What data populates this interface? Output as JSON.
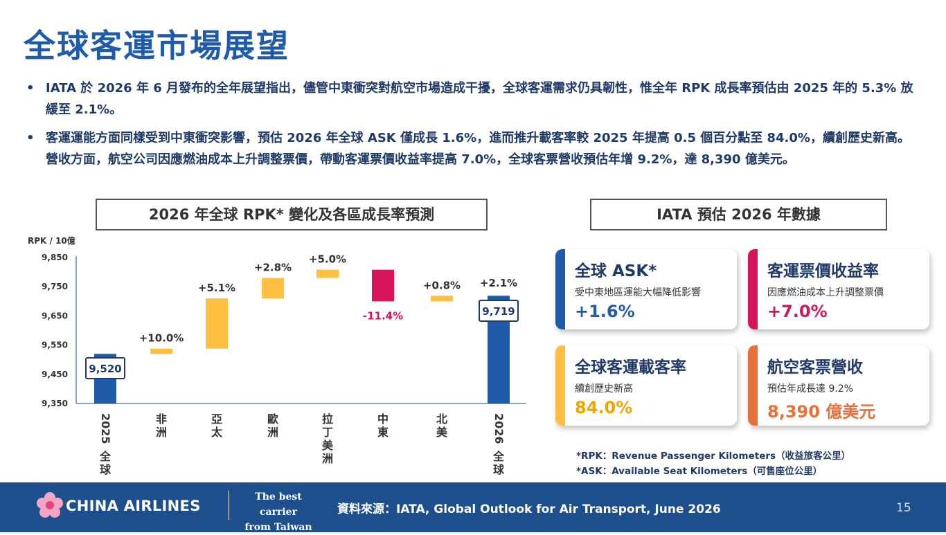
{
  "title": "全球客運市場展望",
  "bullets": [
    "IATA 於 2026 年 6 月發布的全年展望指出，儘管中東衝突對航空市場造成干擾，全球客運需求仍具韌性，惟全年 RPK 成長率預估由 2025 年的 5.3% 放緩至 2.1%。",
    "客運運能方面同樣受到中東衝突影響，預估 2026 年全球 ASK 僅成長 1.6%，進而推升載客率較 2025 年提高 0.5 個百分點至 84.0%，續創歷史新高。營收方面，航空公司因應燃油成本上升調整票價，帶動客運票價收益率提高 7.0%，全球客票營收預估年增 9.2%，達 8,390 億美元。"
  ],
  "bullet_symbol": "•",
  "chart_box_title": "2026 年全球 RPK* 變化及各區成長率預測",
  "data_box_title": "IATA 預估 2026 年數據",
  "chart_data": {
    "type": "bar",
    "subtype": "waterfall",
    "ylabel": "RPK / 10億",
    "ylim": [
      9350,
      9850
    ],
    "yticks": [
      9350,
      9450,
      9550,
      9650,
      9750,
      9850
    ],
    "ytick_labels": [
      "9,350",
      "9,450",
      "9,550",
      "9,650",
      "9,750",
      "9,850"
    ],
    "categories": [
      "2025 全球",
      "非洲",
      "亞太",
      "歐洲",
      "拉丁美洲",
      "中東",
      "北美",
      "2026 全球"
    ],
    "bars": [
      {
        "label": "2025 全球",
        "kind": "total",
        "start": 9350,
        "end": 9520,
        "value_label": "9,520",
        "pct_label": ""
      },
      {
        "label": "非洲",
        "kind": "increase",
        "start": 9520,
        "end": 9538,
        "value_label": "",
        "pct_label": "+10.0%"
      },
      {
        "label": "亞太",
        "kind": "increase",
        "start": 9538,
        "end": 9710,
        "value_label": "",
        "pct_label": "+5.1%"
      },
      {
        "label": "歐洲",
        "kind": "increase",
        "start": 9710,
        "end": 9780,
        "value_label": "",
        "pct_label": "+2.8%"
      },
      {
        "label": "拉丁美洲",
        "kind": "increase",
        "start": 9780,
        "end": 9808,
        "value_label": "",
        "pct_label": "+5.0%"
      },
      {
        "label": "中東",
        "kind": "decrease",
        "start": 9808,
        "end": 9700,
        "value_label": "",
        "pct_label": "-11.4%"
      },
      {
        "label": "北美",
        "kind": "increase",
        "start": 9700,
        "end": 9719,
        "value_label": "",
        "pct_label": "+0.8%"
      },
      {
        "label": "2026 全球",
        "kind": "total",
        "start": 9350,
        "end": 9719,
        "value_label": "9,719",
        "pct_label": "+2.1%"
      }
    ],
    "colors": {
      "total": "#1f5ba8",
      "increase": "#ffbf40",
      "decrease": "#d6145a",
      "axis": "#6b85b5"
    }
  },
  "cards": [
    {
      "title": "全球 ASK*",
      "subtitle": "受中東地區運能大幅降低影響",
      "value": "+1.6%",
      "accent": "#1f5ba8",
      "value_color": "#1f5ba8"
    },
    {
      "title": "客運票價收益率",
      "subtitle": "因應燃油成本上升調整票價",
      "value": "+7.0%",
      "accent": "#d6145a",
      "value_color": "#d6145a"
    },
    {
      "title": "全球客運載客率",
      "subtitle": "續創歷史新高",
      "value": "84.0%",
      "accent": "#ffbf40",
      "value_color": "#f0a500"
    },
    {
      "title": "航空客票營收",
      "subtitle": "預估年成長達 9.2%",
      "value": "8,390 億美元",
      "accent": "#e8703a",
      "value_color": "#e8703a"
    }
  ],
  "footnotes": [
    "*RPK：Revenue Passenger Kilometers（收益旅客公里）",
    "*ASK：Available Seat Kilometers（可售座位公里）"
  ],
  "footer": {
    "brand": "CHINA AIRLINES",
    "tagline_line1": "The best carrier",
    "tagline_line2": "from Taiwan",
    "source": "資料來源：IATA, Global Outlook for Air Transport, June 2026",
    "page_number": "15",
    "bg_color": "#1d4f8c"
  }
}
